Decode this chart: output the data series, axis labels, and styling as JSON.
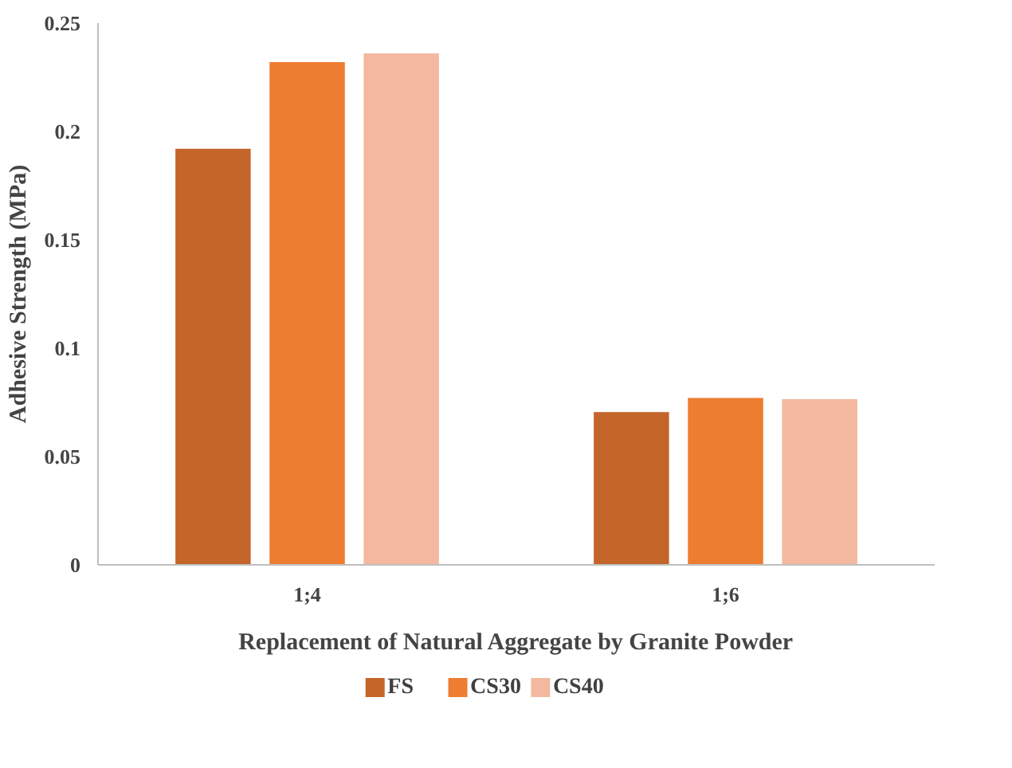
{
  "chart_data": {
    "type": "bar",
    "categories": [
      "1;4",
      "1;6"
    ],
    "xlabel": "Replacement of Natural Aggregate by Granite Powder",
    "ylabel": "Adhesive Strength (MPa)",
    "series": [
      {
        "name": "FS",
        "color": "#c4652a",
        "values": [
          0.192,
          0.0705
        ]
      },
      {
        "name": "CS30",
        "color": "#ed7d31",
        "values": [
          0.232,
          0.077
        ]
      },
      {
        "name": "CS40",
        "color": "#f4b8a0",
        "values": [
          0.236,
          0.0765
        ]
      }
    ],
    "ylim": [
      0,
      0.25
    ],
    "yticks": [
      0,
      0.05,
      0.1,
      0.15,
      0.2,
      0.25
    ],
    "grid": false,
    "legend": "bottom"
  }
}
